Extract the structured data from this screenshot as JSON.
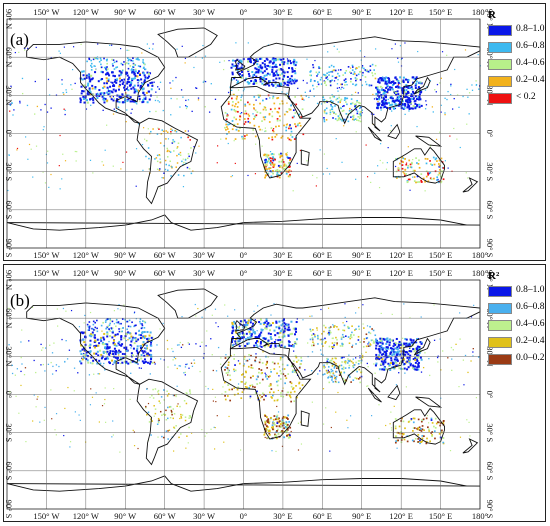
{
  "lon_labels": [
    "150° W",
    "120° W",
    "90° W",
    "60° W",
    "30° W",
    "0°",
    "30° E",
    "60° E",
    "90° E",
    "120° E",
    "150° E",
    "180°"
  ],
  "lat_labels": [
    "90° N",
    "60° N",
    "30° N",
    "0°",
    "30° S",
    "60° S",
    "90° S"
  ],
  "panels": [
    {
      "letter": "(a)",
      "legend_title": "R",
      "legend": [
        {
          "label": "0.8–1.0",
          "color": "#0a17e8"
        },
        {
          "label": "0.6–0.8",
          "color": "#3db9f0"
        },
        {
          "label": "0.4–0.6",
          "color": "#b8f08a"
        },
        {
          "label": "0.2–0.4",
          "color": "#f2b21c"
        },
        {
          "label": "< 0.2",
          "color": "#ee1111"
        }
      ]
    },
    {
      "letter": "(b)",
      "legend_title": "R²",
      "legend": [
        {
          "label": "0.8–1.0",
          "color": "#0a17e8"
        },
        {
          "label": "0.6–0.8",
          "color": "#4ab0ee"
        },
        {
          "label": "0.4–0.6",
          "color": "#bdf08e"
        },
        {
          "label": "0.2–0.4",
          "color": "#e0c11a"
        },
        {
          "label": "0.0–0.2",
          "color": "#9a3a14"
        }
      ]
    }
  ]
}
